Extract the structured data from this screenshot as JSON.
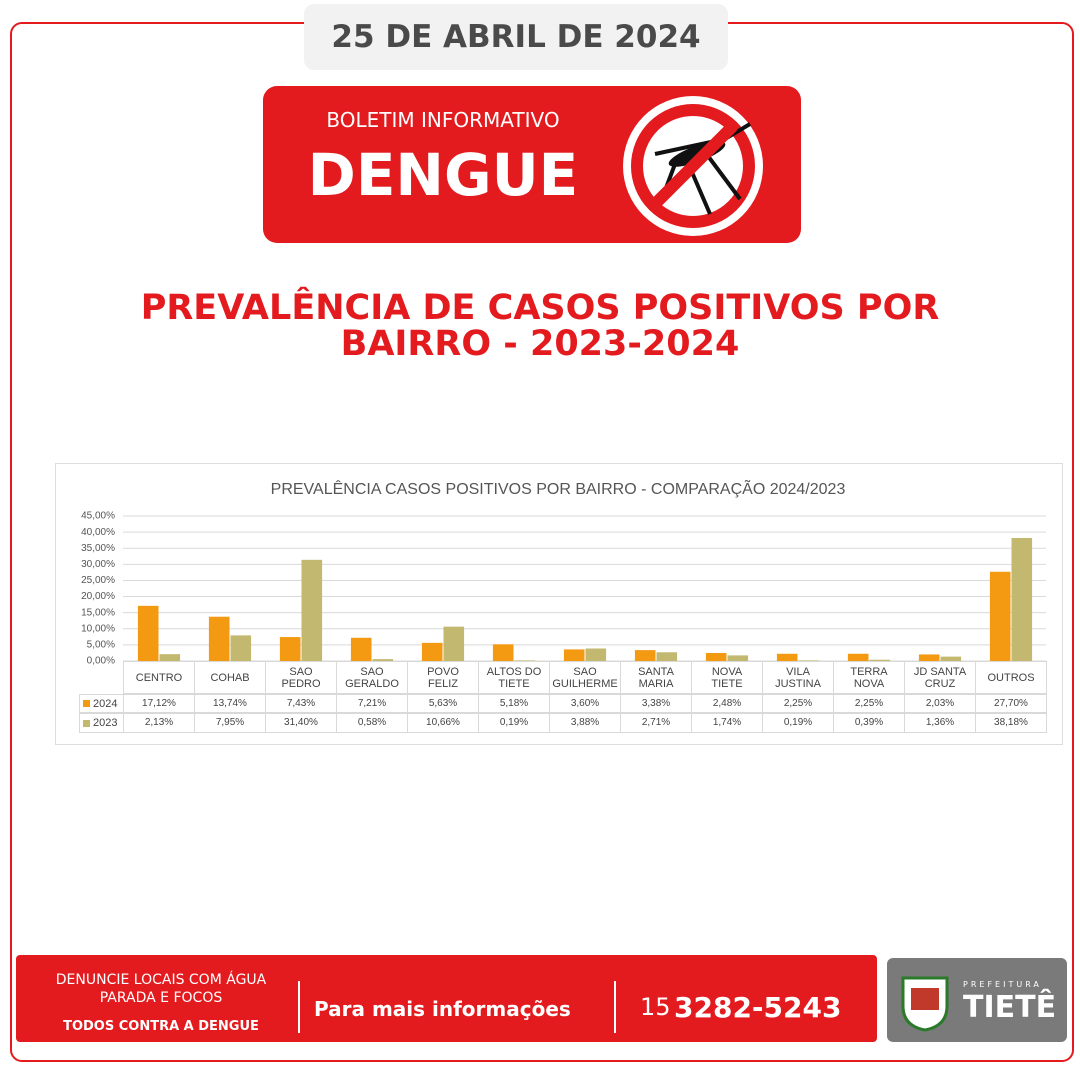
{
  "date": "25 DE ABRIL DE 2024",
  "banner": {
    "subtitle": "BOLETIM INFORMATIVO",
    "title": "DENGUE"
  },
  "heading": "PREVALÊNCIA DE CASOS POSITIVOS POR BAIRRO - 2023-2024",
  "chart_data": {
    "type": "bar",
    "title": "PREVALÊNCIA CASOS POSITIVOS POR BAIRRO - COMPARAÇÃO 2024/2023",
    "categories": [
      "CENTRO",
      "COHAB",
      "SAO PEDRO",
      "SAO GERALDO",
      "POVO FELIZ",
      "ALTOS DO TIETE",
      "SAO GUILHERME",
      "SANTA MARIA",
      "NOVA TIETE",
      "VILA JUSTINA",
      "TERRA NOVA",
      "JD SANTA CRUZ",
      "OUTROS"
    ],
    "series": [
      {
        "name": "2024",
        "color": "#f39a12",
        "values": [
          17.12,
          13.74,
          7.43,
          7.21,
          5.63,
          5.18,
          3.6,
          3.38,
          2.48,
          2.25,
          2.25,
          2.03,
          27.7
        ],
        "value_labels": [
          "17,12%",
          "13,74%",
          "7,43%",
          "7,21%",
          "5,63%",
          "5,18%",
          "3,60%",
          "3,38%",
          "2,48%",
          "2,25%",
          "2,25%",
          "2,03%",
          "27,70%"
        ]
      },
      {
        "name": "2023",
        "color": "#c3b870",
        "values": [
          2.13,
          7.95,
          31.4,
          0.58,
          10.66,
          0.19,
          3.88,
          2.71,
          1.74,
          0.19,
          0.39,
          1.36,
          38.18
        ],
        "value_labels": [
          "2,13%",
          "7,95%",
          "31,40%",
          "0,58%",
          "10,66%",
          "0,19%",
          "3,88%",
          "2,71%",
          "1,74%",
          "0,19%",
          "0,39%",
          "1,36%",
          "38,18%"
        ]
      }
    ],
    "ylim": [
      0,
      45
    ],
    "yticks": [
      {
        "value": 0,
        "label": "0,00%"
      },
      {
        "value": 5,
        "label": "5,00%"
      },
      {
        "value": 10,
        "label": "10,00%"
      },
      {
        "value": 15,
        "label": "15,00%"
      },
      {
        "value": 20,
        "label": "20,00%"
      },
      {
        "value": 25,
        "label": "25,00%"
      },
      {
        "value": 30,
        "label": "30,00%"
      },
      {
        "value": 35,
        "label": "35,00%"
      },
      {
        "value": 40,
        "label": "40,00%"
      },
      {
        "value": 45,
        "label": "45,00%"
      }
    ],
    "grid": true
  },
  "footer": {
    "call": "DENUNCIE LOCAIS COM ÁGUA PARADA E FOCOS",
    "slogan": "TODOS CONTRA A DENGUE",
    "info": "Para mais informações",
    "area_code": "15",
    "phone": "3282-5243"
  },
  "logo": {
    "top": "PREFEITURA",
    "name": "TIETÊ"
  }
}
